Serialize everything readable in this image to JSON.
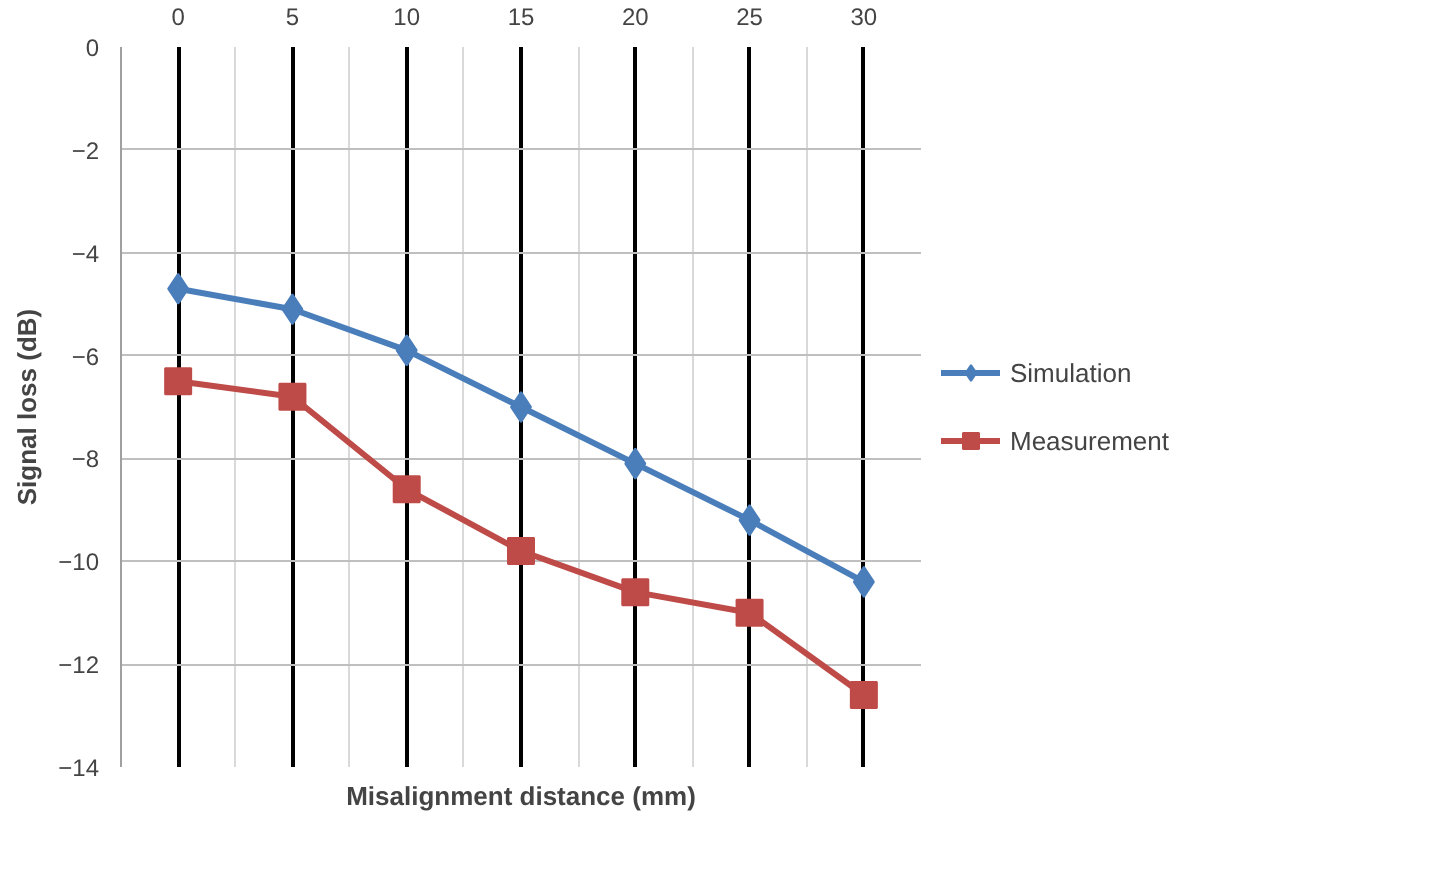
{
  "chart_data": {
    "type": "line",
    "xlabel": "Misalignment distance (mm)",
    "ylabel": "Signal loss (dB)",
    "categories": [
      "0",
      "5",
      "10",
      "15",
      "20",
      "25",
      "30"
    ],
    "series": [
      {
        "name": "Simulation",
        "color": "#4a7ebb",
        "marker": "diamond",
        "values": [
          -4.7,
          -5.1,
          -5.9,
          -7.0,
          -8.1,
          -9.2,
          -10.4
        ]
      },
      {
        "name": "Measurement",
        "color": "#be4b48",
        "marker": "square",
        "values": [
          -6.5,
          -6.8,
          -8.6,
          -9.8,
          -10.6,
          -11.0,
          -12.6
        ]
      }
    ],
    "ylim": [
      -14,
      0
    ],
    "yticks": [
      -14,
      -12,
      -10,
      -8,
      -6,
      -4,
      -2,
      0
    ],
    "grid": true,
    "legend": "right"
  }
}
